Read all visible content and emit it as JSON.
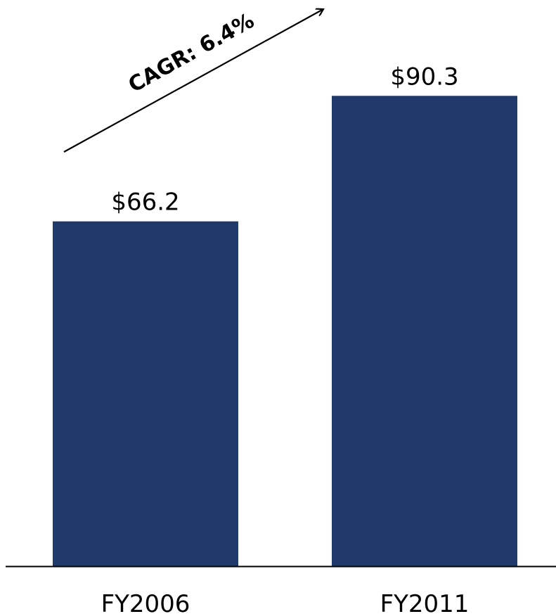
{
  "chart_data": {
    "type": "bar",
    "categories": [
      "FY2006",
      "FY2011"
    ],
    "values": [
      66.2,
      90.3
    ],
    "data_labels": [
      "$66.2",
      "$90.3"
    ],
    "title": "",
    "xlabel": "",
    "ylabel": "",
    "ylim": [
      0,
      108.7
    ],
    "grid": false,
    "legend": "none",
    "bar_color": "#213A6C",
    "annotation": {
      "text": "CAGR: 6.4%"
    }
  }
}
